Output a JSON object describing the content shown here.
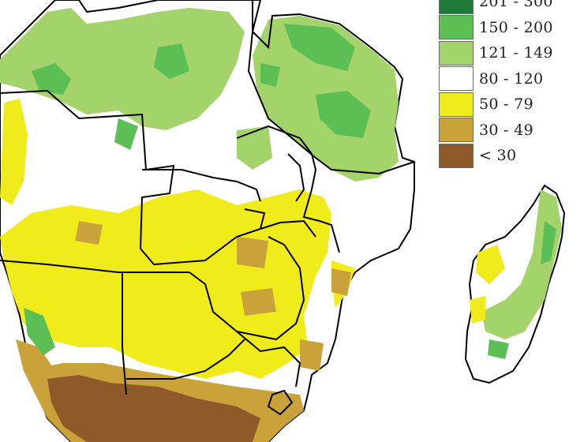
{
  "legend": {
    "items": [
      {
        "label": "201 - 300",
        "color": "#1f7a3c"
      },
      {
        "label": "150 - 200",
        "color": "#5cbf55"
      },
      {
        "label": "121 - 149",
        "color": "#a3d36a"
      },
      {
        "label": "80 - 120",
        "color": "#ffffff"
      },
      {
        "label": "50 - 79",
        "color": "#f0ec1c"
      },
      {
        "label": "30 - 49",
        "color": "#c9a23a"
      },
      {
        "label": "< 30",
        "color": "#8e5a2a"
      }
    ]
  }
}
